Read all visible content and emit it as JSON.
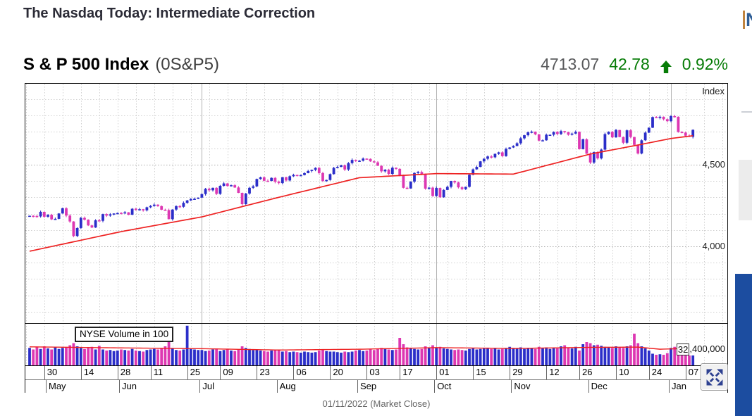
{
  "page": {
    "article_title": "The Nasdaq Today: Intermediate Correction",
    "clipped_right_text": "N",
    "footer_caption": "01/11/2022 (Market Close)"
  },
  "quote": {
    "name": "S & P 500 Index",
    "ticker": "(0S&P5)",
    "last": "4713.07",
    "change": "42.78",
    "change_direction": "up-arrow",
    "change_pct": "0.92%",
    "up_color": "#077c07"
  },
  "chart_data": {
    "type": "candlestick",
    "title": "S & P 500 Index (0S&P5)",
    "y_axis_label": "Index",
    "y_ticks": [
      {
        "value": 4500,
        "label": "4,500"
      },
      {
        "value": 4000,
        "label": "4,000"
      }
    ],
    "price_panel_range": [
      3530,
      4995
    ],
    "volume_overlay_label": "NYSE Volume in 100",
    "volume_tick": {
      "box": "32",
      "rest": ",400,000",
      "full": "32,400,000"
    },
    "volume_scale_max_millions": 80,
    "x_ticks": [
      {
        "label": "30",
        "i": 4
      },
      {
        "label": "14",
        "i": 14
      },
      {
        "label": "28",
        "i": 24
      },
      {
        "label": "11",
        "i": 33
      },
      {
        "label": "25",
        "i": 43
      },
      {
        "label": "09",
        "i": 52
      },
      {
        "label": "23",
        "i": 62
      },
      {
        "label": "06",
        "i": 72
      },
      {
        "label": "20",
        "i": 82
      },
      {
        "label": "03",
        "i": 92
      },
      {
        "label": "17",
        "i": 101
      },
      {
        "label": "01",
        "i": 111
      },
      {
        "label": "15",
        "i": 121
      },
      {
        "label": "29",
        "i": 131
      },
      {
        "label": "12",
        "i": 141
      },
      {
        "label": "26",
        "i": 150
      },
      {
        "label": "10",
        "i": 160
      },
      {
        "label": "24",
        "i": 169
      },
      {
        "label": "07",
        "i": 179
      }
    ],
    "months": [
      {
        "label": "May",
        "i": 5
      },
      {
        "label": "Jun",
        "i": 25
      },
      {
        "label": "Jul",
        "i": 47
      },
      {
        "label": "Aug",
        "i": 68
      },
      {
        "label": "Sep",
        "i": 90
      },
      {
        "label": "Oct",
        "i": 111
      },
      {
        "label": "Nov",
        "i": 132
      },
      {
        "label": "Dec",
        "i": 153
      },
      {
        "label": "Jan",
        "i": 175
      }
    ],
    "quarter_lines": [
      47,
      111,
      175
    ],
    "closes_weeks": [
      [
        4187,
        4186,
        4183,
        4211,
        4181
      ],
      [
        4193,
        4165,
        4168,
        4201,
        4233
      ],
      [
        4188,
        4152,
        4063,
        4112,
        4174
      ],
      [
        4163,
        4128,
        4115,
        4159,
        4156
      ],
      [
        4197,
        4188,
        4196,
        4201,
        4204
      ],
      [
        4202,
        4208,
        4193,
        4230
      ],
      [
        4227,
        4227,
        4220,
        4239,
        4247
      ],
      [
        4255,
        4246,
        4224,
        4222,
        4166
      ],
      [
        4225,
        4246,
        4242,
        4266,
        4281
      ],
      [
        4290,
        4291,
        4298
      ],
      [
        4320,
        4352
      ],
      [
        4343,
        4358,
        4321,
        4370
      ],
      [
        4385,
        4369,
        4374,
        4360,
        4327
      ],
      [
        4258,
        4323,
        4358,
        4367,
        4412
      ],
      [
        4422,
        4401,
        4400,
        4419,
        4395
      ],
      [
        4387,
        4423,
        4403,
        4429,
        4437
      ],
      [
        4432,
        4436,
        4448,
        4461,
        4468
      ],
      [
        4480,
        4448,
        4400,
        4406,
        4442
      ],
      [
        4480,
        4486,
        4496,
        4470,
        4509
      ],
      [
        4529,
        4523
      ],
      [
        4524,
        4537,
        4535
      ],
      [
        4520,
        4514,
        4493,
        4459
      ],
      [
        4469,
        4443,
        4481,
        4474,
        4433
      ],
      [
        4358,
        4354,
        4396,
        4449,
        4455
      ],
      [
        4443,
        4353,
        4359,
        4308,
        4357
      ],
      [
        4300,
        4345,
        4364,
        4400,
        4391
      ],
      [
        4361,
        4350,
        4364,
        4438,
        4471
      ],
      [
        4486,
        4520,
        4536,
        4550,
        4545
      ],
      [
        4566,
        4575,
        4552,
        4596,
        4605
      ],
      [
        4614,
        4631,
        4661,
        4680,
        4698
      ],
      [
        4702,
        4685,
        4647,
        4649,
        4683
      ],
      [
        4683,
        4700,
        4688,
        4705,
        4698
      ],
      [
        4683,
        4690,
        4701,
        4595
      ],
      [
        4655,
        4567,
        4513,
        4577,
        4538
      ],
      [
        4592,
        4687,
        4701,
        4667,
        4712
      ],
      [
        4669,
        4634,
        4710,
        4669,
        4621
      ],
      [
        4568,
        4649,
        4696,
        4726
      ],
      [
        4791,
        4786,
        4793,
        4778,
        4766
      ],
      [
        4797,
        4793,
        4700,
        4696,
        4677
      ],
      [
        4670,
        4713.07
      ]
    ],
    "volumes_weeks_millions": [
      [
        33,
        30,
        35,
        31,
        36
      ],
      [
        32,
        30,
        34,
        31,
        33
      ],
      [
        34,
        38,
        42,
        36,
        33
      ],
      [
        31,
        33,
        35,
        30,
        37
      ],
      [
        30,
        28,
        29,
        27,
        28
      ],
      [
        30,
        29,
        28,
        31
      ],
      [
        28,
        27,
        26,
        29,
        30
      ],
      [
        31,
        30,
        33,
        36,
        48
      ],
      [
        33,
        29,
        28,
        30,
        75
      ],
      [
        31,
        30,
        29
      ],
      [
        29,
        27
      ],
      [
        28,
        30,
        32,
        27
      ],
      [
        29,
        31,
        28,
        27,
        30
      ],
      [
        36,
        33,
        31,
        29,
        30
      ],
      [
        28,
        27,
        26,
        28,
        29
      ],
      [
        28,
        26,
        27,
        25,
        26
      ],
      [
        25,
        24,
        26,
        25,
        24
      ],
      [
        25,
        28,
        30,
        27,
        26
      ],
      [
        26,
        25,
        24,
        26,
        25
      ],
      [
        26,
        28
      ],
      [
        29,
        27,
        28
      ],
      [
        30,
        29,
        31,
        33
      ],
      [
        31,
        30,
        29,
        30,
        52
      ],
      [
        40,
        34,
        32,
        31,
        30
      ],
      [
        31,
        36,
        34,
        38,
        33
      ],
      [
        35,
        32,
        31,
        30,
        29
      ],
      [
        30,
        29,
        28,
        31,
        32
      ],
      [
        30,
        31,
        32,
        33,
        31
      ],
      [
        32,
        30,
        31,
        33,
        35
      ],
      [
        33,
        32,
        34,
        31,
        33
      ],
      [
        32,
        31,
        35,
        33,
        34
      ],
      [
        31,
        33,
        32,
        36,
        38
      ],
      [
        33,
        32,
        35,
        28
      ],
      [
        40,
        44,
        42,
        38,
        39
      ],
      [
        37,
        35,
        34,
        33,
        36
      ],
      [
        35,
        33,
        36,
        38,
        60
      ],
      [
        42,
        36,
        32,
        28
      ],
      [
        22,
        20,
        21,
        20,
        23
      ],
      [
        33,
        35,
        38,
        34,
        33
      ],
      [
        34,
        36
      ]
    ],
    "ma50_anchors": [
      [
        0,
        3970
      ],
      [
        25,
        4090
      ],
      [
        47,
        4180
      ],
      [
        68,
        4300
      ],
      [
        90,
        4420
      ],
      [
        111,
        4445
      ],
      [
        132,
        4442
      ],
      [
        153,
        4565
      ],
      [
        166,
        4620
      ],
      [
        175,
        4660
      ],
      [
        181,
        4677
      ]
    ],
    "volume_ma_anchors_millions": [
      [
        0,
        35
      ],
      [
        25,
        33
      ],
      [
        47,
        31.5
      ],
      [
        68,
        29
      ],
      [
        90,
        30.5
      ],
      [
        111,
        33.5
      ],
      [
        132,
        32
      ],
      [
        153,
        34
      ],
      [
        166,
        34.5
      ],
      [
        172,
        30.5
      ],
      [
        181,
        32.4
      ]
    ],
    "colors": {
      "up": "#2b2ec9",
      "down": "#dd38b2",
      "ma_line": "#ee2222",
      "grid_minor": "#cfcfcf",
      "grid_major": "#a9a9a9",
      "quarter_line": "#b2b2b2"
    },
    "legend_position": "none",
    "grid": true
  }
}
